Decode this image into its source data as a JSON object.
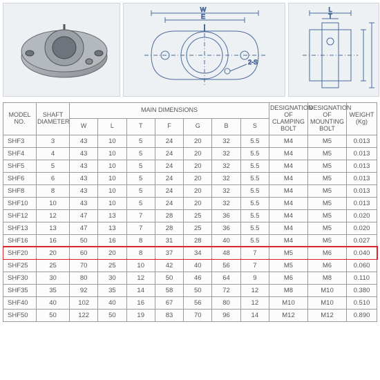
{
  "diagrams": {
    "labels": {
      "w": "W",
      "e": "E",
      "l": "L",
      "t": "T",
      "note": "2-S"
    }
  },
  "headers": {
    "model": "MODEL NO.",
    "shaft": "SHAFT DIAMETER",
    "main": "MAIN DIMENSIONS",
    "clamp": "DESIGNATION OF CLAMPING BOLT",
    "mount": "DESIGNATION OF MOUNTING BOLT",
    "weight": "WEIGHT (Kg)",
    "dims": [
      "W",
      "L",
      "T",
      "F",
      "G",
      "B",
      "S"
    ]
  },
  "rows": [
    {
      "m": "SHF3",
      "sd": "3",
      "W": "43",
      "L": "10",
      "T": "5",
      "F": "24",
      "G": "20",
      "B": "32",
      "S": "5.5",
      "cb": "M4",
      "mb": "M5",
      "w": "0.013",
      "hl": false
    },
    {
      "m": "SHF4",
      "sd": "4",
      "W": "43",
      "L": "10",
      "T": "5",
      "F": "24",
      "G": "20",
      "B": "32",
      "S": "5.5",
      "cb": "M4",
      "mb": "M5",
      "w": "0.013",
      "hl": false
    },
    {
      "m": "SHF5",
      "sd": "5",
      "W": "43",
      "L": "10",
      "T": "5",
      "F": "24",
      "G": "20",
      "B": "32",
      "S": "5.5",
      "cb": "M4",
      "mb": "M5",
      "w": "0.013",
      "hl": false
    },
    {
      "m": "SHF6",
      "sd": "6",
      "W": "43",
      "L": "10",
      "T": "5",
      "F": "24",
      "G": "20",
      "B": "32",
      "S": "5.5",
      "cb": "M4",
      "mb": "M5",
      "w": "0.013",
      "hl": false
    },
    {
      "m": "SHF8",
      "sd": "8",
      "W": "43",
      "L": "10",
      "T": "5",
      "F": "24",
      "G": "20",
      "B": "32",
      "S": "5.5",
      "cb": "M4",
      "mb": "M5",
      "w": "0.013",
      "hl": false
    },
    {
      "m": "SHF10",
      "sd": "10",
      "W": "43",
      "L": "10",
      "T": "5",
      "F": "24",
      "G": "20",
      "B": "32",
      "S": "5.5",
      "cb": "M4",
      "mb": "M5",
      "w": "0.013",
      "hl": false
    },
    {
      "m": "SHF12",
      "sd": "12",
      "W": "47",
      "L": "13",
      "T": "7",
      "F": "28",
      "G": "25",
      "B": "36",
      "S": "5.5",
      "cb": "M4",
      "mb": "M5",
      "w": "0.020",
      "hl": false
    },
    {
      "m": "SHF13",
      "sd": "13",
      "W": "47",
      "L": "13",
      "T": "7",
      "F": "28",
      "G": "25",
      "B": "36",
      "S": "5.5",
      "cb": "M4",
      "mb": "M5",
      "w": "0.020",
      "hl": false
    },
    {
      "m": "SHF16",
      "sd": "16",
      "W": "50",
      "L": "16",
      "T": "8",
      "F": "31",
      "G": "28",
      "B": "40",
      "S": "5.5",
      "cb": "M4",
      "mb": "M5",
      "w": "0.027",
      "hl": false
    },
    {
      "m": "SHF20",
      "sd": "20",
      "W": "60",
      "L": "20",
      "T": "8",
      "F": "37",
      "G": "34",
      "B": "48",
      "S": "7",
      "cb": "M5",
      "mb": "M6",
      "w": "0.040",
      "hl": true
    },
    {
      "m": "SHF25",
      "sd": "25",
      "W": "70",
      "L": "25",
      "T": "10",
      "F": "42",
      "G": "40",
      "B": "56",
      "S": "7",
      "cb": "M5",
      "mb": "M6",
      "w": "0.060",
      "hl": false
    },
    {
      "m": "SHF30",
      "sd": "30",
      "W": "80",
      "L": "30",
      "T": "12",
      "F": "50",
      "G": "46",
      "B": "64",
      "S": "9",
      "cb": "M6",
      "mb": "M8",
      "w": "0.110",
      "hl": false
    },
    {
      "m": "SHF35",
      "sd": "35",
      "W": "92",
      "L": "35",
      "T": "14",
      "F": "58",
      "G": "50",
      "B": "72",
      "S": "12",
      "cb": "M8",
      "mb": "M10",
      "w": "0.380",
      "hl": false
    },
    {
      "m": "SHF40",
      "sd": "40",
      "W": "102",
      "L": "40",
      "T": "16",
      "F": "67",
      "G": "56",
      "B": "80",
      "S": "12",
      "cb": "M10",
      "mb": "M10",
      "w": "0.510",
      "hl": false
    },
    {
      "m": "SHF50",
      "sd": "50",
      "W": "122",
      "L": "50",
      "T": "19",
      "F": "83",
      "G": "70",
      "B": "96",
      "S": "14",
      "cb": "M12",
      "mb": "M12",
      "w": "0.890",
      "hl": false
    }
  ],
  "style": {
    "highlight_border": "#d9252a",
    "cell_text_color": "#555555",
    "border_color": "#999999",
    "bg": "#fcfcfc"
  }
}
